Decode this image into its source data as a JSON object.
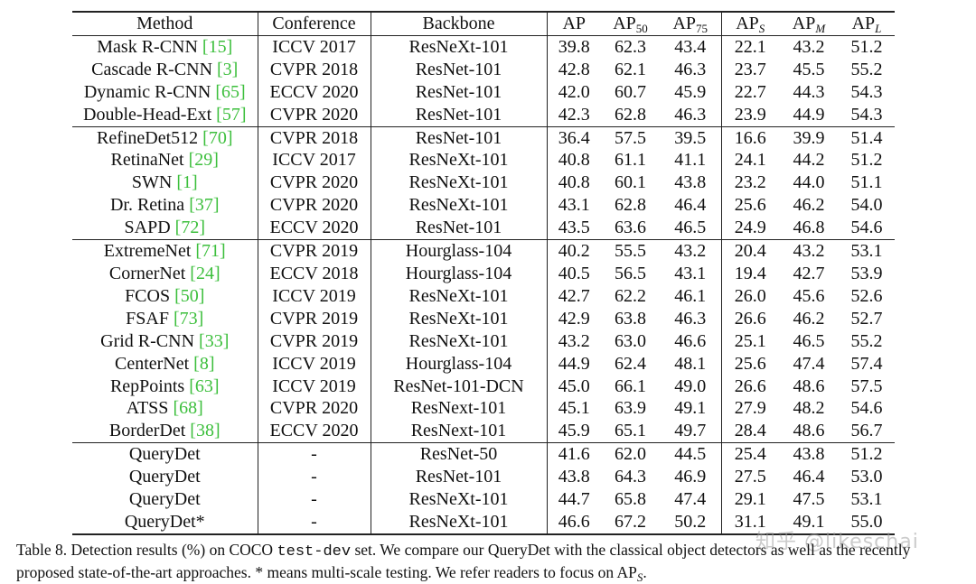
{
  "headers": {
    "method": "Method",
    "conference": "Conference",
    "backbone": "Backbone",
    "ap": "AP",
    "ap50_base": "AP",
    "ap50_sub": "50",
    "ap75_base": "AP",
    "ap75_sub": "75",
    "aps_base": "AP",
    "aps_sub": "S",
    "apm_base": "AP",
    "apm_sub": "M",
    "apl_base": "AP",
    "apl_sub": "L"
  },
  "rows": [
    {
      "method": "Mask R-CNN",
      "cite": "[15]",
      "conference": "ICCV 2017",
      "backbone": "ResNeXt-101",
      "ap": "39.8",
      "ap50": "62.3",
      "ap75": "43.4",
      "aps": "22.1",
      "apm": "43.2",
      "apl": "51.2"
    },
    {
      "method": "Cascade R-CNN",
      "cite": "[3]",
      "conference": "CVPR 2018",
      "backbone": "ResNet-101",
      "ap": "42.8",
      "ap50": "62.1",
      "ap75": "46.3",
      "aps": "23.7",
      "apm": "45.5",
      "apl": "55.2"
    },
    {
      "method": "Dynamic R-CNN",
      "cite": "[65]",
      "conference": "ECCV 2020",
      "backbone": "ResNet-101",
      "ap": "42.0",
      "ap50": "60.7",
      "ap75": "45.9",
      "aps": "22.7",
      "apm": "44.3",
      "apl": "54.3"
    },
    {
      "method": "Double-Head-Ext",
      "cite": "[57]",
      "conference": "CVPR 2020",
      "backbone": "ResNet-101",
      "ap": "42.3",
      "ap50": "62.8",
      "ap75": "46.3",
      "aps": "23.9",
      "apm": "44.9",
      "apl": "54.3"
    },
    {
      "method": "RefineDet512",
      "cite": "[70]",
      "conference": "CVPR 2018",
      "backbone": "ResNet-101",
      "ap": "36.4",
      "ap50": "57.5",
      "ap75": "39.5",
      "aps": "16.6",
      "apm": "39.9",
      "apl": "51.4"
    },
    {
      "method": "RetinaNet",
      "cite": "[29]",
      "conference": "ICCV 2017",
      "backbone": "ResNeXt-101",
      "ap": "40.8",
      "ap50": "61.1",
      "ap75": "41.1",
      "aps": "24.1",
      "apm": "44.2",
      "apl": "51.2"
    },
    {
      "method": "SWN",
      "cite": "[1]",
      "conference": "CVPR 2020",
      "backbone": "ResNeXt-101",
      "ap": "40.8",
      "ap50": "60.1",
      "ap75": "43.8",
      "aps": "23.2",
      "apm": "44.0",
      "apl": "51.1"
    },
    {
      "method": "Dr. Retina",
      "cite": "[37]",
      "conference": "CVPR 2020",
      "backbone": "ResNeXt-101",
      "ap": "43.1",
      "ap50": "62.8",
      "ap75": "46.4",
      "aps": "25.6",
      "apm": "46.2",
      "apl": "54.0"
    },
    {
      "method": "SAPD",
      "cite": "[72]",
      "conference": "ECCV 2020",
      "backbone": "ResNet-101",
      "ap": "43.5",
      "ap50": "63.6",
      "ap75": "46.5",
      "aps": "24.9",
      "apm": "46.8",
      "apl": "54.6"
    },
    {
      "method": "ExtremeNet",
      "cite": "[71]",
      "conference": "CVPR 2019",
      "backbone": "Hourglass-104",
      "ap": "40.2",
      "ap50": "55.5",
      "ap75": "43.2",
      "aps": "20.4",
      "apm": "43.2",
      "apl": "53.1"
    },
    {
      "method": "CornerNet",
      "cite": "[24]",
      "conference": "ECCV 2018",
      "backbone": "Hourglass-104",
      "ap": "40.5",
      "ap50": "56.5",
      "ap75": "43.1",
      "aps": "19.4",
      "apm": "42.7",
      "apl": "53.9"
    },
    {
      "method": "FCOS",
      "cite": "[50]",
      "conference": "ICCV 2019",
      "backbone": "ResNeXt-101",
      "ap": "42.7",
      "ap50": "62.2",
      "ap75": "46.1",
      "aps": "26.0",
      "apm": "45.6",
      "apl": "52.6"
    },
    {
      "method": "FSAF",
      "cite": "[73]",
      "conference": "CVPR 2019",
      "backbone": "ResNeXt-101",
      "ap": "42.9",
      "ap50": "63.8",
      "ap75": "46.3",
      "aps": "26.6",
      "apm": "46.2",
      "apl": "52.7"
    },
    {
      "method": "Grid R-CNN",
      "cite": "[33]",
      "conference": "CVPR 2019",
      "backbone": "ResNeXt-101",
      "ap": "43.2",
      "ap50": "63.0",
      "ap75": "46.6",
      "aps": "25.1",
      "apm": "46.5",
      "apl": "55.2"
    },
    {
      "method": "CenterNet",
      "cite": "[8]",
      "conference": "ICCV 2019",
      "backbone": "Hourglass-104",
      "ap": "44.9",
      "ap50": "62.4",
      "ap75": "48.1",
      "aps": "25.6",
      "apm": "47.4",
      "apl": "57.4"
    },
    {
      "method": "RepPoints",
      "cite": "[63]",
      "conference": "ICCV 2019",
      "backbone": "ResNet-101-DCN",
      "ap": "45.0",
      "ap50": "66.1",
      "ap75": "49.0",
      "aps": "26.6",
      "apm": "48.6",
      "apl": "57.5"
    },
    {
      "method": "ATSS",
      "cite": "[68]",
      "conference": "CVPR 2020",
      "backbone": "ResNext-101",
      "ap": "45.1",
      "ap50": "63.9",
      "ap75": "49.1",
      "aps": "27.9",
      "apm": "48.2",
      "apl": "54.6"
    },
    {
      "method": "BorderDet",
      "cite": "[38]",
      "conference": "ECCV 2020",
      "backbone": "ResNext-101",
      "ap": "45.9",
      "ap50": "65.1",
      "ap75": "49.7",
      "aps": "28.4",
      "apm": "48.6",
      "apl": "56.7"
    },
    {
      "method": "QueryDet",
      "cite": "",
      "conference": "-",
      "backbone": "ResNet-50",
      "ap": "41.6",
      "ap50": "62.0",
      "ap75": "44.5",
      "aps": "25.4",
      "apm": "43.8",
      "apl": "51.2"
    },
    {
      "method": "QueryDet",
      "cite": "",
      "conference": "-",
      "backbone": "ResNet-101",
      "ap": "43.8",
      "ap50": "64.3",
      "ap75": "46.9",
      "aps": "27.5",
      "apm": "46.4",
      "apl": "53.0"
    },
    {
      "method": "QueryDet",
      "cite": "",
      "conference": "-",
      "backbone": "ResNeXt-101",
      "ap": "44.7",
      "ap50": "65.8",
      "ap75": "47.4",
      "aps": "29.1",
      "apm": "47.5",
      "apl": "53.1"
    },
    {
      "method": "QueryDet*",
      "cite": "",
      "conference": "-",
      "backbone": "ResNeXt-101",
      "ap": "46.6",
      "ap50": "67.2",
      "ap75": "50.2",
      "aps": "31.1",
      "apm": "49.1",
      "apl": "55.0"
    }
  ],
  "group_starts": [
    4,
    9,
    18
  ],
  "caption": {
    "part1": "Table 8. Detection results (%) on COCO ",
    "code": "test-dev",
    "part2": " set.  We compare our QueryDet with the classical object detectors as well as the recently proposed state-of-the-art approaches. * means multi-scale testing. We refer readers to focus on AP",
    "sub": "S",
    "part3": "."
  },
  "watermark": "知乎 @likeschai",
  "colors": {
    "citation": "#3cbf3c",
    "rule": "#222222"
  }
}
